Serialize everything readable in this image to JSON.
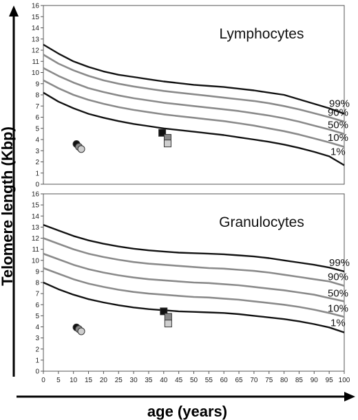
{
  "chart_data": {
    "type": "line",
    "xlabel": "age (years)",
    "ylabel": "Telomere length (Kbp)",
    "xlim": [
      0,
      100
    ],
    "ylim": [
      0,
      16
    ],
    "x_ticks": [
      0,
      5,
      10,
      15,
      20,
      25,
      30,
      35,
      40,
      45,
      50,
      55,
      60,
      65,
      70,
      75,
      80,
      85,
      90,
      95,
      100
    ],
    "y_ticks": [
      0,
      1,
      2,
      3,
      4,
      5,
      6,
      7,
      8,
      9,
      10,
      11,
      12,
      13,
      14,
      15,
      16
    ],
    "colors": {
      "black_line": "#111111",
      "gray_line": "#8a8a8a",
      "dark_marker": "#111111",
      "mid_marker": "#8a8a8a",
      "light_marker": "#cfcfcf"
    },
    "panels": [
      {
        "title": "Lymphocytes",
        "x": [
          0,
          5,
          10,
          15,
          20,
          25,
          30,
          35,
          40,
          45,
          50,
          55,
          60,
          65,
          70,
          75,
          80,
          85,
          90,
          95,
          100
        ],
        "series": [
          {
            "name": "99%",
            "style": "black",
            "values": [
              12.5,
              11.7,
              11.0,
              10.5,
              10.1,
              9.8,
              9.6,
              9.4,
              9.2,
              9.05,
              8.9,
              8.8,
              8.7,
              8.55,
              8.4,
              8.2,
              8.0,
              7.6,
              7.2,
              6.8,
              6.3
            ]
          },
          {
            "name": "90%",
            "style": "gray",
            "values": [
              11.6,
              10.8,
              10.2,
              9.7,
              9.3,
              9.0,
              8.75,
              8.55,
              8.35,
              8.2,
              8.05,
              7.9,
              7.75,
              7.6,
              7.45,
              7.25,
              7.0,
              6.7,
              6.35,
              6.0,
              5.6
            ]
          },
          {
            "name": "50%",
            "style": "gray",
            "values": [
              10.4,
              9.7,
              9.1,
              8.6,
              8.25,
              7.95,
              7.7,
              7.5,
              7.3,
              7.15,
              7.0,
              6.85,
              6.7,
              6.55,
              6.35,
              6.15,
              5.9,
              5.6,
              5.25,
              4.9,
              4.5
            ]
          },
          {
            "name": "10%",
            "style": "gray",
            "values": [
              9.3,
              8.6,
              8.0,
              7.55,
              7.2,
              6.9,
              6.65,
              6.45,
              6.25,
              6.1,
              5.95,
              5.8,
              5.65,
              5.45,
              5.25,
              5.0,
              4.75,
              4.45,
              4.1,
              3.75,
              3.35
            ]
          },
          {
            "name": "1%",
            "style": "black",
            "values": [
              8.2,
              7.4,
              6.8,
              6.3,
              5.95,
              5.65,
              5.4,
              5.2,
              5.0,
              4.85,
              4.7,
              4.55,
              4.4,
              4.2,
              4.0,
              3.8,
              3.55,
              3.25,
              2.9,
              2.5,
              1.7
            ]
          }
        ],
        "points": [
          {
            "shape": "circle",
            "shade": "dark",
            "x": 11,
            "y": 3.6
          },
          {
            "shape": "circle",
            "shade": "mid",
            "x": 11.8,
            "y": 3.35
          },
          {
            "shape": "circle",
            "shade": "light",
            "x": 12.6,
            "y": 3.15
          },
          {
            "shape": "square",
            "shade": "dark",
            "x": 39.5,
            "y": 4.6
          },
          {
            "shape": "square",
            "shade": "mid",
            "x": 41.3,
            "y": 4.15
          },
          {
            "shape": "square",
            "shade": "light",
            "x": 41.3,
            "y": 3.65
          }
        ]
      },
      {
        "title": "Granulocytes",
        "x": [
          0,
          5,
          10,
          15,
          20,
          25,
          30,
          35,
          40,
          45,
          50,
          55,
          60,
          65,
          70,
          75,
          80,
          85,
          90,
          95,
          100
        ],
        "series": [
          {
            "name": "99%",
            "style": "black",
            "values": [
              13.2,
              12.7,
              12.2,
              11.8,
              11.5,
              11.25,
              11.05,
              10.9,
              10.8,
              10.7,
              10.65,
              10.6,
              10.55,
              10.45,
              10.35,
              10.2,
              10.0,
              9.8,
              9.6,
              9.35,
              9.0
            ]
          },
          {
            "name": "90%",
            "style": "gray",
            "values": [
              12.0,
              11.5,
              11.0,
              10.6,
              10.3,
              10.05,
              9.85,
              9.7,
              9.6,
              9.5,
              9.4,
              9.3,
              9.25,
              9.15,
              9.05,
              8.9,
              8.7,
              8.5,
              8.3,
              8.1,
              7.7
            ]
          },
          {
            "name": "50%",
            "style": "gray",
            "values": [
              10.6,
              10.1,
              9.6,
              9.2,
              8.9,
              8.65,
              8.45,
              8.3,
              8.2,
              8.1,
              8.0,
              7.95,
              7.85,
              7.75,
              7.6,
              7.45,
              7.3,
              7.1,
              6.9,
              6.6,
              6.3
            ]
          },
          {
            "name": "10%",
            "style": "gray",
            "values": [
              9.3,
              8.8,
              8.3,
              7.9,
              7.6,
              7.35,
              7.15,
              7.0,
              6.9,
              6.8,
              6.7,
              6.65,
              6.55,
              6.45,
              6.3,
              6.15,
              6.0,
              5.8,
              5.55,
              5.25,
              4.9
            ]
          },
          {
            "name": "1%",
            "style": "black",
            "values": [
              8.0,
              7.4,
              6.9,
              6.5,
              6.2,
              5.95,
              5.75,
              5.6,
              5.5,
              5.4,
              5.35,
              5.3,
              5.25,
              5.15,
              5.0,
              4.85,
              4.7,
              4.5,
              4.25,
              3.95,
              3.5
            ]
          }
        ],
        "points": [
          {
            "shape": "circle",
            "shade": "dark",
            "x": 11,
            "y": 3.95
          },
          {
            "shape": "circle",
            "shade": "mid",
            "x": 11.8,
            "y": 3.8
          },
          {
            "shape": "circle",
            "shade": "light",
            "x": 12.6,
            "y": 3.6
          },
          {
            "shape": "square",
            "shade": "dark",
            "x": 40.0,
            "y": 5.4
          },
          {
            "shape": "square",
            "shade": "mid",
            "x": 41.5,
            "y": 4.9
          },
          {
            "shape": "square",
            "shade": "light",
            "x": 41.5,
            "y": 4.3
          }
        ]
      }
    ]
  }
}
